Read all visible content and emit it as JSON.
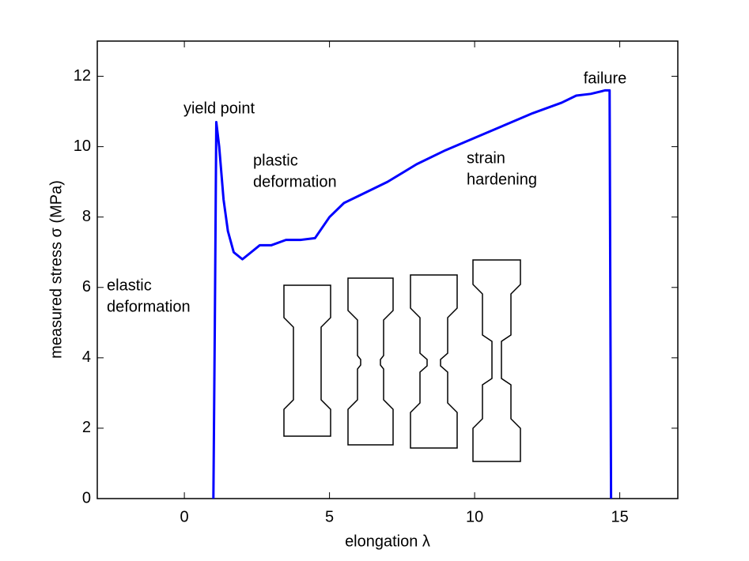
{
  "chart_data": {
    "type": "line",
    "xlabel": "elongation λ",
    "ylabel": "measured stress σ (MPa)",
    "annotations": {
      "yield": [
        "yield point"
      ],
      "plastic": [
        "plastic",
        "deformation"
      ],
      "elastic": [
        "elastic",
        "deformation"
      ],
      "hardening": [
        "strain",
        "hardening"
      ],
      "failure": [
        "failure"
      ]
    },
    "x": [
      1.0,
      1.05,
      1.1,
      1.2,
      1.35,
      1.5,
      1.7,
      2.0,
      2.3,
      2.6,
      3.0,
      3.5,
      4.0,
      4.5,
      5.0,
      5.5,
      6.0,
      7.0,
      8.0,
      9.0,
      10.0,
      11.0,
      12.0,
      13.0,
      13.5,
      14.0,
      14.5,
      14.65,
      14.7
    ],
    "values": [
      0,
      5.0,
      10.7,
      10.0,
      8.5,
      7.6,
      7.0,
      6.8,
      7.0,
      7.2,
      7.2,
      7.35,
      7.35,
      7.4,
      8.0,
      8.4,
      8.6,
      9.0,
      9.5,
      9.9,
      10.25,
      10.6,
      10.95,
      11.25,
      11.45,
      11.5,
      11.6,
      11.6,
      0
    ],
    "color": "#0000ff",
    "xlim": [
      -3,
      17
    ],
    "ylim": [
      0,
      13
    ],
    "xticks": [
      0,
      5,
      10,
      15
    ],
    "yticks": [
      0,
      2,
      4,
      6,
      8,
      10,
      12
    ]
  }
}
